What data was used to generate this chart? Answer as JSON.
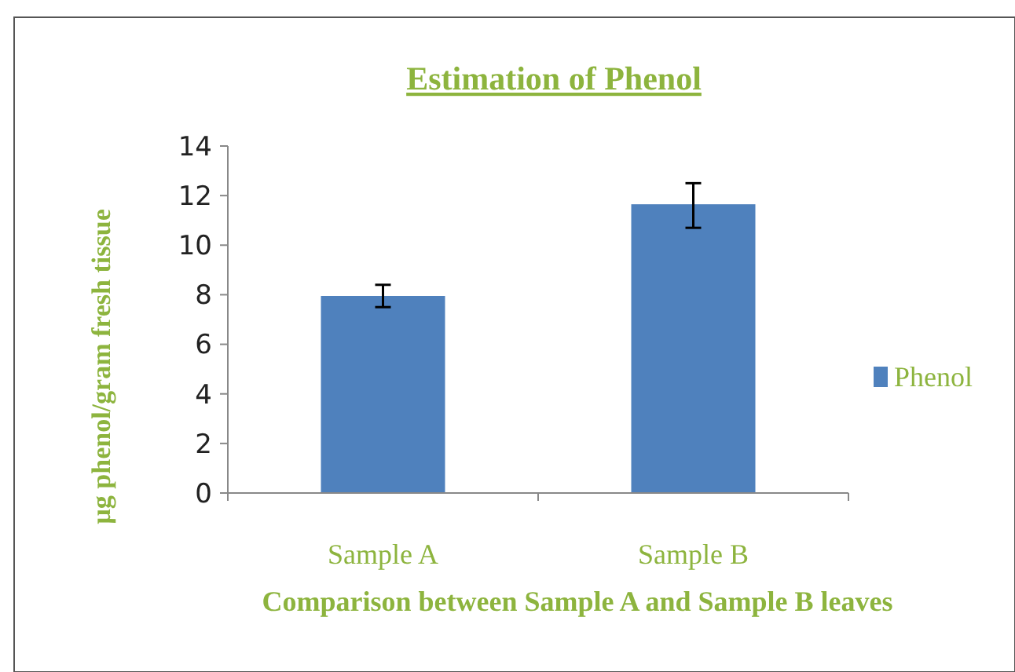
{
  "chart_data": {
    "type": "bar",
    "title": "Estimation of Phenol",
    "xlabel": "Comparison between Sample A and Sample B leaves",
    "ylabel": "µg phenol/gram fresh tissue",
    "categories": [
      "Sample A",
      "Sample B"
    ],
    "series": [
      {
        "name": "Phenol",
        "color": "#4f81bd",
        "values": [
          7.95,
          11.65
        ],
        "errors": [
          [
            7.5,
            8.4
          ],
          [
            10.7,
            12.5
          ]
        ]
      }
    ],
    "ylim": [
      0,
      14
    ],
    "yticks": [
      0,
      2,
      4,
      6,
      8,
      10,
      12,
      14
    ],
    "grid": false,
    "legend": "right"
  }
}
